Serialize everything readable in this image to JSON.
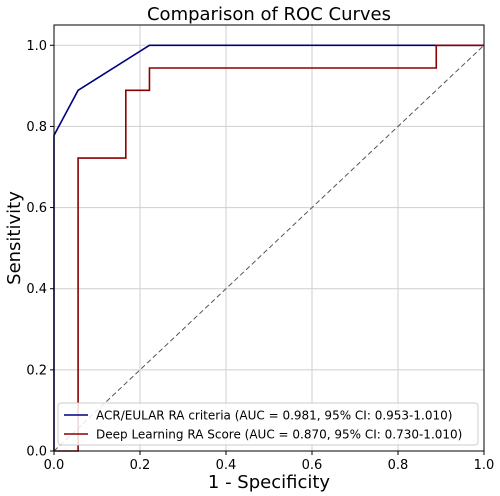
{
  "chart_data": {
    "type": "line",
    "title": "Comparison of ROC Curves",
    "xlabel": "1 - Specificity",
    "ylabel": "Sensitivity",
    "xlim": [
      0,
      1
    ],
    "ylim": [
      0,
      1.05
    ],
    "x_ticks": [
      0.0,
      0.2,
      0.4,
      0.6,
      0.8,
      1.0
    ],
    "y_ticks": [
      0.0,
      0.2,
      0.4,
      0.6,
      0.8,
      1.0
    ],
    "x_tick_labels": [
      "0.0",
      "0.2",
      "0.4",
      "0.6",
      "0.8",
      "1.0"
    ],
    "y_tick_labels": [
      "0.0",
      "0.2",
      "0.4",
      "0.6",
      "0.8",
      "1.0"
    ],
    "grid": true,
    "legend_position": "lower-right",
    "series": [
      {
        "name": "ACR/EULAR RA criteria (AUC = 0.981, 95% CI: 0.953-1.010)",
        "color": "#000080",
        "points": [
          [
            0.0,
            0.0
          ],
          [
            0.0,
            0.778
          ],
          [
            0.056,
            0.889
          ],
          [
            0.222,
            1.0
          ],
          [
            1.0,
            1.0
          ]
        ]
      },
      {
        "name": "Deep Learning RA Score (AUC = 0.870, 95% CI: 0.730-1.010)",
        "color": "#8b0000",
        "points": [
          [
            0.0,
            0.0
          ],
          [
            0.056,
            0.0
          ],
          [
            0.056,
            0.722
          ],
          [
            0.167,
            0.722
          ],
          [
            0.167,
            0.889
          ],
          [
            0.222,
            0.889
          ],
          [
            0.222,
            0.944
          ],
          [
            0.889,
            0.944
          ],
          [
            0.889,
            1.0
          ],
          [
            1.0,
            1.0
          ]
        ]
      }
    ],
    "reference_line": {
      "points": [
        [
          0.0,
          0.0
        ],
        [
          1.0,
          1.0
        ]
      ],
      "color": "#555555",
      "style": "dashed"
    }
  }
}
